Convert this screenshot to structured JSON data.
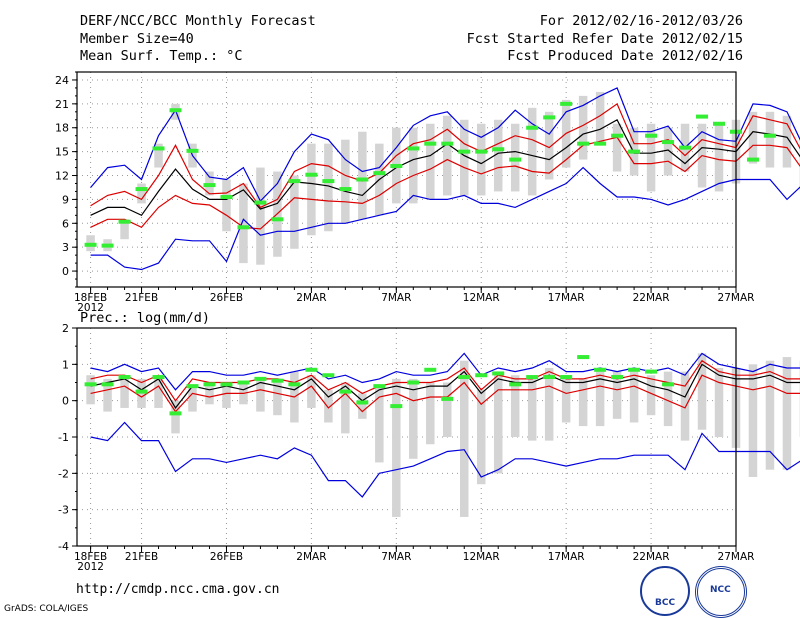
{
  "header": {
    "title": "DERF/NCC/BCC Monthly Forecast",
    "member_size": "Member Size=40",
    "variable": "Mean Surf. Temp.: °C",
    "forecast_period": "For 2012/02/16-2012/03/26",
    "started_date": "Fcst Started Refer Date 2012/02/15",
    "produced_date": "Fcst Produced Date 2012/02/16"
  },
  "footer": {
    "url": "http://cmdp.ncc.cma.gov.cn",
    "grads_credit": "GrADS: COLA/IGES",
    "logo_left_text": "BCC",
    "logo_right_text": "NCC"
  },
  "colors": {
    "envelope": "#0000dd",
    "spread": "#dd0000",
    "mean": "#000000",
    "observed": "#33ee33",
    "bar": "#d4d4d4",
    "grid": "#999999"
  },
  "chart_data": [
    {
      "type": "line",
      "title": "Mean Surf. Temp.: °C",
      "x_tick_labels": [
        "18FEB",
        "21FEB",
        "26FEB",
        "2MAR",
        "7MAR",
        "12MAR",
        "17MAR",
        "22MAR",
        "27MAR"
      ],
      "x_tick_days": [
        0,
        3,
        8,
        13,
        18,
        23,
        28,
        33,
        38
      ],
      "x_year_label": "2012",
      "x_range": [
        -0.8,
        38
      ],
      "ylim": [
        -2,
        25
      ],
      "y_ticks": [
        0,
        3,
        6,
        9,
        12,
        15,
        18,
        21,
        24
      ],
      "series": [
        {
          "name": "max",
          "color": "blue",
          "values": [
            10.5,
            13.0,
            13.3,
            11.5,
            17.0,
            20.2,
            14.5,
            11.8,
            11.5,
            13.0,
            8.8,
            11.0,
            15.0,
            17.2,
            16.5,
            14.0,
            12.5,
            13.0,
            15.5,
            18.3,
            19.5,
            20.0,
            17.8,
            16.8,
            18.0,
            20.2,
            18.5,
            17.2,
            20.0,
            20.8,
            22.0,
            23.0,
            17.5,
            17.5,
            18.2,
            15.5,
            17.5,
            16.5,
            16.3,
            21.0,
            20.8,
            20.0,
            15.5,
            17.2
          ]
        },
        {
          "name": "upper",
          "color": "red",
          "values": [
            8.2,
            9.5,
            10.0,
            9.0,
            12.0,
            15.8,
            11.5,
            9.7,
            9.8,
            11.0,
            8.0,
            9.0,
            12.5,
            13.5,
            13.2,
            12.0,
            11.3,
            12.3,
            14.5,
            16.0,
            16.5,
            17.8,
            16.0,
            15.0,
            16.0,
            17.0,
            16.5,
            15.5,
            17.3,
            18.3,
            19.5,
            21.0,
            16.0,
            16.0,
            16.5,
            14.5,
            16.5,
            16.0,
            15.5,
            19.5,
            19.0,
            18.5,
            14.5,
            16.3
          ]
        },
        {
          "name": "mean",
          "color": "black",
          "values": [
            7.0,
            8.0,
            8.0,
            7.0,
            10.0,
            12.8,
            10.3,
            9.0,
            9.0,
            10.2,
            7.8,
            8.5,
            11.2,
            11.0,
            10.7,
            10.0,
            9.5,
            11.5,
            13.0,
            14.0,
            14.5,
            16.0,
            14.5,
            13.5,
            14.8,
            15.0,
            14.5,
            14.0,
            15.5,
            17.2,
            17.8,
            19.0,
            14.8,
            14.8,
            15.2,
            13.5,
            15.5,
            15.3,
            15.0,
            17.5,
            17.2,
            16.8,
            13.7,
            15.5
          ]
        },
        {
          "name": "lower",
          "color": "red",
          "values": [
            5.5,
            6.5,
            6.5,
            5.5,
            8.0,
            9.5,
            8.5,
            8.3,
            7.0,
            5.5,
            5.3,
            7.2,
            9.2,
            9.0,
            8.8,
            8.7,
            8.5,
            9.5,
            11.0,
            12.0,
            12.8,
            14.0,
            13.0,
            12.2,
            13.0,
            13.2,
            12.5,
            12.3,
            14.0,
            15.8,
            16.3,
            16.8,
            13.5,
            13.5,
            13.8,
            12.5,
            14.5,
            14.0,
            13.8,
            15.8,
            15.8,
            15.5,
            12.5,
            14.5
          ]
        },
        {
          "name": "min",
          "color": "blue",
          "values": [
            2.0,
            2.0,
            0.5,
            0.2,
            1.0,
            4.0,
            3.8,
            3.8,
            1.2,
            6.5,
            4.5,
            5.0,
            5.0,
            5.5,
            6.0,
            6.0,
            6.5,
            7.0,
            7.5,
            9.5,
            9.0,
            9.0,
            9.5,
            8.5,
            8.5,
            8.0,
            9.0,
            10.0,
            11.0,
            13.0,
            11.0,
            9.3,
            9.3,
            9.0,
            8.3,
            9.0,
            10.0,
            11.0,
            11.5,
            11.5,
            11.5,
            9.0,
            11.0,
            12.5
          ]
        }
      ],
      "range_bars": [
        [
          2.5,
          4.5
        ],
        [
          2.5,
          4.0
        ],
        [
          4.0,
          6.5
        ],
        [
          8.5,
          11.0
        ],
        [
          13.0,
          16.0
        ],
        [
          19.0,
          21.0
        ],
        [
          13.0,
          16.0
        ],
        [
          9.5,
          12.5
        ],
        [
          5.0,
          11.5
        ],
        [
          1.0,
          11.0
        ],
        [
          0.8,
          13.0
        ],
        [
          1.8,
          12.5
        ],
        [
          2.8,
          12.0
        ],
        [
          4.5,
          16.0
        ],
        [
          5.0,
          16.0
        ],
        [
          6.0,
          16.5
        ],
        [
          6.5,
          17.5
        ],
        [
          7.0,
          16.0
        ],
        [
          8.5,
          18.0
        ],
        [
          8.5,
          18.0
        ],
        [
          9.0,
          18.5
        ],
        [
          9.5,
          19.5
        ],
        [
          9.5,
          19.0
        ],
        [
          9.5,
          18.5
        ],
        [
          10.0,
          19.0
        ],
        [
          10.0,
          18.5
        ],
        [
          9.5,
          20.5
        ],
        [
          11.5,
          20.0
        ],
        [
          13.0,
          21.5
        ],
        [
          14.0,
          22.0
        ],
        [
          16.0,
          22.5
        ],
        [
          12.5,
          18.5
        ],
        [
          12.0,
          18.0
        ],
        [
          10.0,
          18.5
        ],
        [
          12.0,
          18.0
        ],
        [
          12.5,
          18.5
        ],
        [
          10.5,
          18.5
        ],
        [
          10.0,
          18.5
        ],
        [
          11.0,
          19.0
        ],
        [
          13.5,
          20.0
        ],
        [
          13.0,
          20.0
        ],
        [
          13.0,
          19.5
        ],
        [
          10.0,
          16.5
        ],
        [
          12.5,
          18.5
        ]
      ],
      "observed": [
        3.3,
        3.2,
        6.2,
        10.3,
        15.4,
        20.2,
        15.1,
        10.8,
        9.3,
        5.5,
        8.6,
        6.5,
        11.3,
        12.1,
        11.3,
        10.3,
        11.5,
        12.3,
        13.2,
        15.4,
        16.0,
        16.0,
        15.0,
        15.0,
        15.3,
        14.0,
        18.0,
        19.3,
        21.0,
        16.0,
        16.0,
        17.0,
        15.0,
        17.0,
        16.2,
        15.5,
        19.4,
        18.5,
        17.5,
        14.0,
        17.0
      ]
    },
    {
      "type": "line",
      "title": "Prec.: log(mm/d)",
      "x_tick_labels": [
        "18FEB",
        "21FEB",
        "26FEB",
        "2MAR",
        "7MAR",
        "12MAR",
        "17MAR",
        "22MAR",
        "27MAR"
      ],
      "x_tick_days": [
        0,
        3,
        8,
        13,
        18,
        23,
        28,
        33,
        38
      ],
      "x_year_label": "2012",
      "x_range": [
        -0.8,
        38
      ],
      "ylim": [
        -4,
        2
      ],
      "y_ticks": [
        -4,
        -3,
        -2,
        -1,
        0,
        1,
        2
      ],
      "series": [
        {
          "name": "max",
          "color": "blue",
          "values": [
            0.9,
            0.8,
            1.0,
            0.8,
            0.9,
            0.3,
            0.8,
            0.8,
            0.7,
            0.7,
            0.8,
            0.7,
            0.8,
            0.9,
            0.6,
            0.7,
            0.5,
            0.6,
            0.8,
            0.7,
            0.7,
            0.8,
            1.3,
            0.7,
            0.9,
            0.8,
            0.9,
            1.1,
            0.8,
            0.8,
            0.9,
            0.8,
            0.9,
            0.8,
            0.9,
            0.7,
            1.3,
            1.0,
            0.9,
            0.8,
            1.0,
            0.9,
            0.9,
            0.8
          ]
        },
        {
          "name": "upper",
          "color": "red",
          "values": [
            0.6,
            0.7,
            0.7,
            0.5,
            0.7,
            0.0,
            0.6,
            0.5,
            0.5,
            0.5,
            0.6,
            0.6,
            0.5,
            0.7,
            0.3,
            0.5,
            0.2,
            0.4,
            0.5,
            0.5,
            0.5,
            0.6,
            0.9,
            0.3,
            0.7,
            0.6,
            0.6,
            0.8,
            0.6,
            0.6,
            0.7,
            0.6,
            0.7,
            0.6,
            0.5,
            0.4,
            1.1,
            0.8,
            0.7,
            0.7,
            0.8,
            0.6,
            0.6,
            0.5
          ]
        },
        {
          "name": "mean",
          "color": "black",
          "values": [
            0.4,
            0.5,
            0.6,
            0.3,
            0.6,
            -0.2,
            0.4,
            0.3,
            0.4,
            0.3,
            0.5,
            0.4,
            0.3,
            0.6,
            0.1,
            0.4,
            0.0,
            0.3,
            0.4,
            0.3,
            0.4,
            0.4,
            0.8,
            0.2,
            0.6,
            0.5,
            0.5,
            0.7,
            0.5,
            0.5,
            0.6,
            0.5,
            0.6,
            0.4,
            0.3,
            0.1,
            1.0,
            0.7,
            0.6,
            0.6,
            0.7,
            0.5,
            0.5,
            0.4
          ]
        },
        {
          "name": "lower",
          "color": "red",
          "values": [
            0.2,
            0.3,
            0.4,
            0.1,
            0.4,
            -0.3,
            0.2,
            0.1,
            0.2,
            0.2,
            0.3,
            0.2,
            0.1,
            0.4,
            -0.2,
            0.2,
            -0.3,
            0.1,
            0.2,
            0.0,
            0.1,
            0.1,
            0.5,
            -0.1,
            0.3,
            0.3,
            0.3,
            0.4,
            0.2,
            0.3,
            0.4,
            0.3,
            0.4,
            0.2,
            0.0,
            -0.2,
            0.7,
            0.5,
            0.4,
            0.3,
            0.4,
            0.2,
            0.2,
            0.1
          ]
        },
        {
          "name": "min",
          "color": "blue",
          "values": [
            -1.0,
            -1.1,
            -0.6,
            -1.1,
            -1.1,
            -1.95,
            -1.6,
            -1.6,
            -1.7,
            -1.6,
            -1.5,
            -1.6,
            -1.3,
            -1.5,
            -2.2,
            -2.2,
            -2.65,
            -2.0,
            -1.9,
            -1.8,
            -1.6,
            -1.4,
            -1.35,
            -2.1,
            -1.9,
            -1.6,
            -1.6,
            -1.7,
            -1.8,
            -1.7,
            -1.6,
            -1.6,
            -1.5,
            -1.5,
            -1.5,
            -1.9,
            -0.9,
            -1.4,
            -1.4,
            -1.4,
            -1.4,
            -1.9,
            -1.6,
            -1.8
          ]
        }
      ],
      "range_bars": [
        [
          -0.1,
          0.7
        ],
        [
          -0.3,
          0.6
        ],
        [
          -0.2,
          0.7
        ],
        [
          -0.2,
          0.6
        ],
        [
          -0.2,
          0.7
        ],
        [
          -0.9,
          0.0
        ],
        [
          -0.3,
          0.4
        ],
        [
          -0.1,
          0.4
        ],
        [
          -0.2,
          0.5
        ],
        [
          -0.1,
          0.5
        ],
        [
          -0.3,
          0.6
        ],
        [
          -0.4,
          0.5
        ],
        [
          -0.6,
          0.8
        ],
        [
          -0.2,
          0.7
        ],
        [
          -0.6,
          0.3
        ],
        [
          -0.9,
          0.5
        ],
        [
          -0.5,
          0.2
        ],
        [
          -1.7,
          0.4
        ],
        [
          -3.2,
          0.6
        ],
        [
          -1.6,
          0.6
        ],
        [
          -1.2,
          0.5
        ],
        [
          -1.0,
          0.5
        ],
        [
          -3.2,
          1.1
        ],
        [
          -2.3,
          0.3
        ],
        [
          -2.0,
          0.8
        ],
        [
          -1.0,
          0.7
        ],
        [
          -1.1,
          0.6
        ],
        [
          -1.1,
          0.9
        ],
        [
          -0.6,
          0.7
        ],
        [
          -0.7,
          0.6
        ],
        [
          -0.7,
          0.8
        ],
        [
          -0.5,
          0.8
        ],
        [
          -0.6,
          0.8
        ],
        [
          -0.4,
          0.7
        ],
        [
          -0.7,
          0.8
        ],
        [
          -1.1,
          0.8
        ],
        [
          -0.8,
          1.3
        ],
        [
          -1.0,
          0.9
        ],
        [
          -1.3,
          0.9
        ],
        [
          -2.1,
          1.0
        ],
        [
          -1.9,
          1.1
        ],
        [
          -1.9,
          1.2
        ],
        [
          -1.0,
          1.1
        ],
        [
          -1.0,
          0.9
        ]
      ],
      "observed": [
        0.45,
        0.45,
        0.65,
        0.25,
        0.65,
        -0.35,
        0.4,
        0.45,
        0.45,
        0.5,
        0.6,
        0.55,
        0.45,
        0.85,
        0.7,
        0.25,
        -0.05,
        0.4,
        -0.15,
        0.5,
        0.85,
        0.05,
        0.65,
        0.7,
        0.75,
        0.45,
        0.65,
        0.65,
        0.65,
        1.2,
        0.85,
        0.65,
        0.85,
        0.8,
        0.45
      ]
    }
  ]
}
